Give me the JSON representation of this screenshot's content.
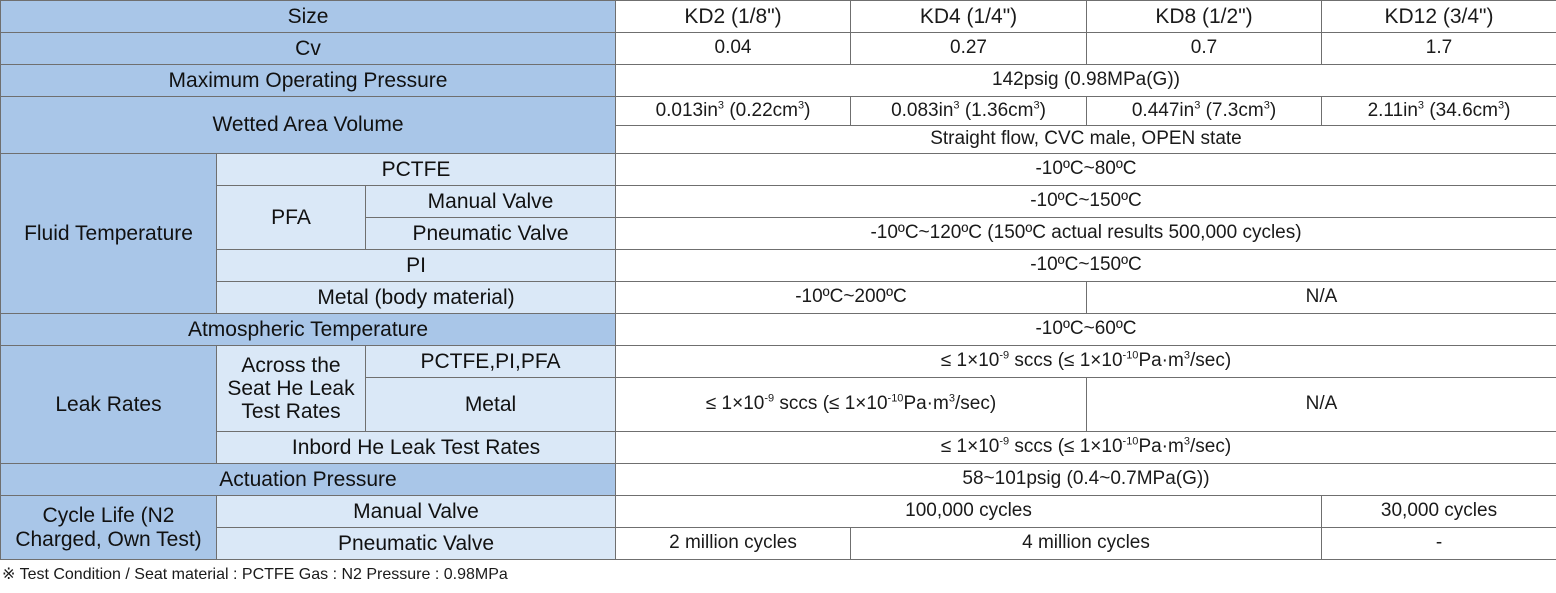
{
  "header": {
    "size_label": "Size",
    "models": [
      "KD2 (1/8\")",
      "KD4 (1/4\")",
      "KD8 (1/2\")",
      "KD12 (3/4\")"
    ]
  },
  "cv": {
    "label": "Cv",
    "values": [
      "0.04",
      "0.27",
      "0.7",
      "1.7"
    ]
  },
  "max_pressure": {
    "label": "Maximum Operating Pressure",
    "value": "142psig (0.98MPa(G))"
  },
  "wetted": {
    "label": "Wetted Area Volume",
    "values": [
      {
        "a": "0.013in",
        "b": " (0.22cm",
        "c": ")"
      },
      {
        "a": "0.083in",
        "b": " (1.36cm",
        "c": ")"
      },
      {
        "a": "0.447in",
        "b": " (7.3cm",
        "c": ")"
      },
      {
        "a": "2.11in",
        "b": " (34.6cm",
        "c": ")"
      }
    ],
    "exp": "3",
    "note": "Straight flow, CVC male, OPEN state"
  },
  "fluid": {
    "label": "Fluid Temperature",
    "pctfe": {
      "label": "PCTFE",
      "value": "-10ºC~80ºC"
    },
    "pfa": {
      "label": "PFA",
      "manual": {
        "label": "Manual Valve",
        "value": "-10ºC~150ºC"
      },
      "pneumatic": {
        "label": "Pneumatic Valve",
        "value": "-10ºC~120ºC (150ºC actual results 500,000 cycles)"
      }
    },
    "pi": {
      "label": "PI",
      "value": "-10ºC~150ºC"
    },
    "metal": {
      "label": "Metal (body material)",
      "value": "-10ºC~200ºC",
      "na": "N/A"
    }
  },
  "atmospheric": {
    "label": "Atmospheric Temperature",
    "value": "-10ºC~60ºC"
  },
  "leak": {
    "label": "Leak Rates",
    "seat_label": "Across the Seat He Leak Test Rates",
    "resin": {
      "label": "PCTFE,PI,PFA"
    },
    "metal": {
      "label": "Metal",
      "na": "N/A"
    },
    "inbord": {
      "label": "Inbord He Leak Test Rates"
    },
    "rate": {
      "a": "≤ 1×10",
      "e1": "-9",
      "b": " sccs (≤ 1×10",
      "e2": "-10",
      "c": "Pa·m",
      "e3": "3",
      "d": "/sec)"
    }
  },
  "actuation": {
    "label": "Actuation Pressure",
    "value": "58~101psig (0.4~0.7MPa(G))"
  },
  "cycle": {
    "label": "Cycle Life (N2 Charged, Own Test)",
    "manual": {
      "label": "Manual Valve",
      "value": "100,000 cycles",
      "kd12": "30,000 cycles"
    },
    "pneumatic": {
      "label": "Pneumatic Valve",
      "kd2": "2 million cycles",
      "kd4_8": "4 million cycles",
      "kd12": "-"
    }
  },
  "footnote": "※ Test Condition / Seat material : PCTFE    Gas : N2    Pressure : 0.98MPa"
}
